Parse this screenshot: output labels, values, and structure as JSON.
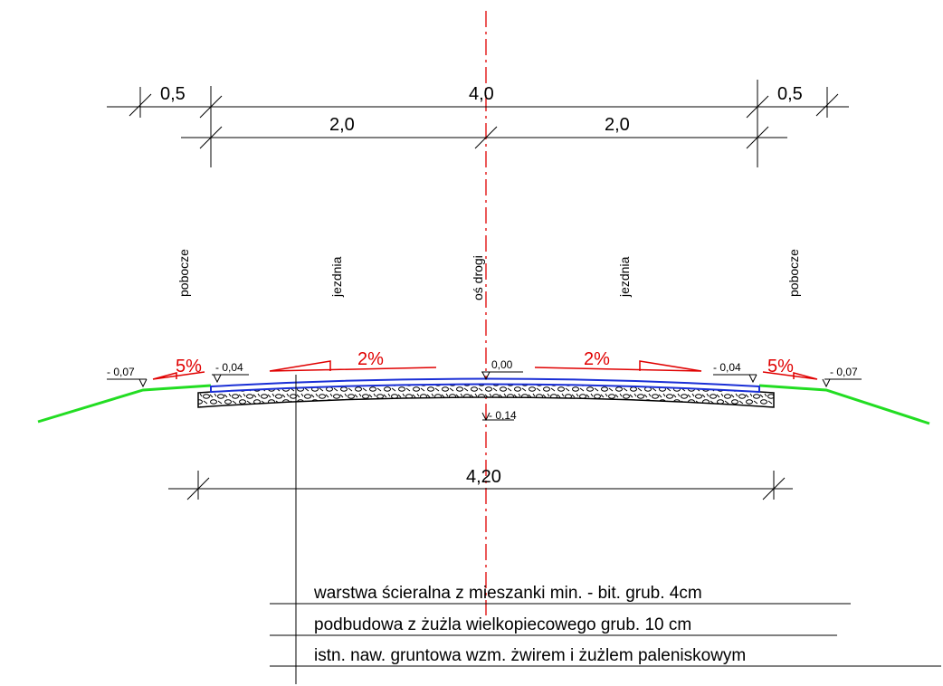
{
  "dimensions": {
    "top_total": "4,0",
    "left_shoulder": "0,5",
    "right_shoulder": "0,5",
    "left_lane": "2,0",
    "right_lane": "2,0",
    "base_width": "4,20"
  },
  "zones": {
    "left_shoulder": "pobocze",
    "left_lane": "jezdnia",
    "axis": "oś drogi",
    "right_lane": "jezdnia",
    "right_shoulder": "pobocze"
  },
  "levels": {
    "left_edge": "- 0,07",
    "left_pavement_edge": "- 0,04",
    "axis_top": "0,00",
    "right_pavement_edge": "- 0,04",
    "right_edge": "- 0,07",
    "axis_bottom": "- 0,14"
  },
  "slopes": {
    "left_shoulder": "5%",
    "left_lane": "2%",
    "right_lane": "2%",
    "right_shoulder": "5%"
  },
  "layers": [
    "warstwa ścieralna z mieszanki min. - bit. grub. 4cm",
    "podbudowa z żużla wielkopiecowego grub. 10 cm",
    "istn. naw. gruntowa wzm. żwirem i żużlem paleniskowym"
  ],
  "colors": {
    "axis_line": "#e00000",
    "slope_marker": "#e00000",
    "wearing_course": "#1a2fd6",
    "ground_slope": "#22dd22",
    "linework": "#000000"
  }
}
